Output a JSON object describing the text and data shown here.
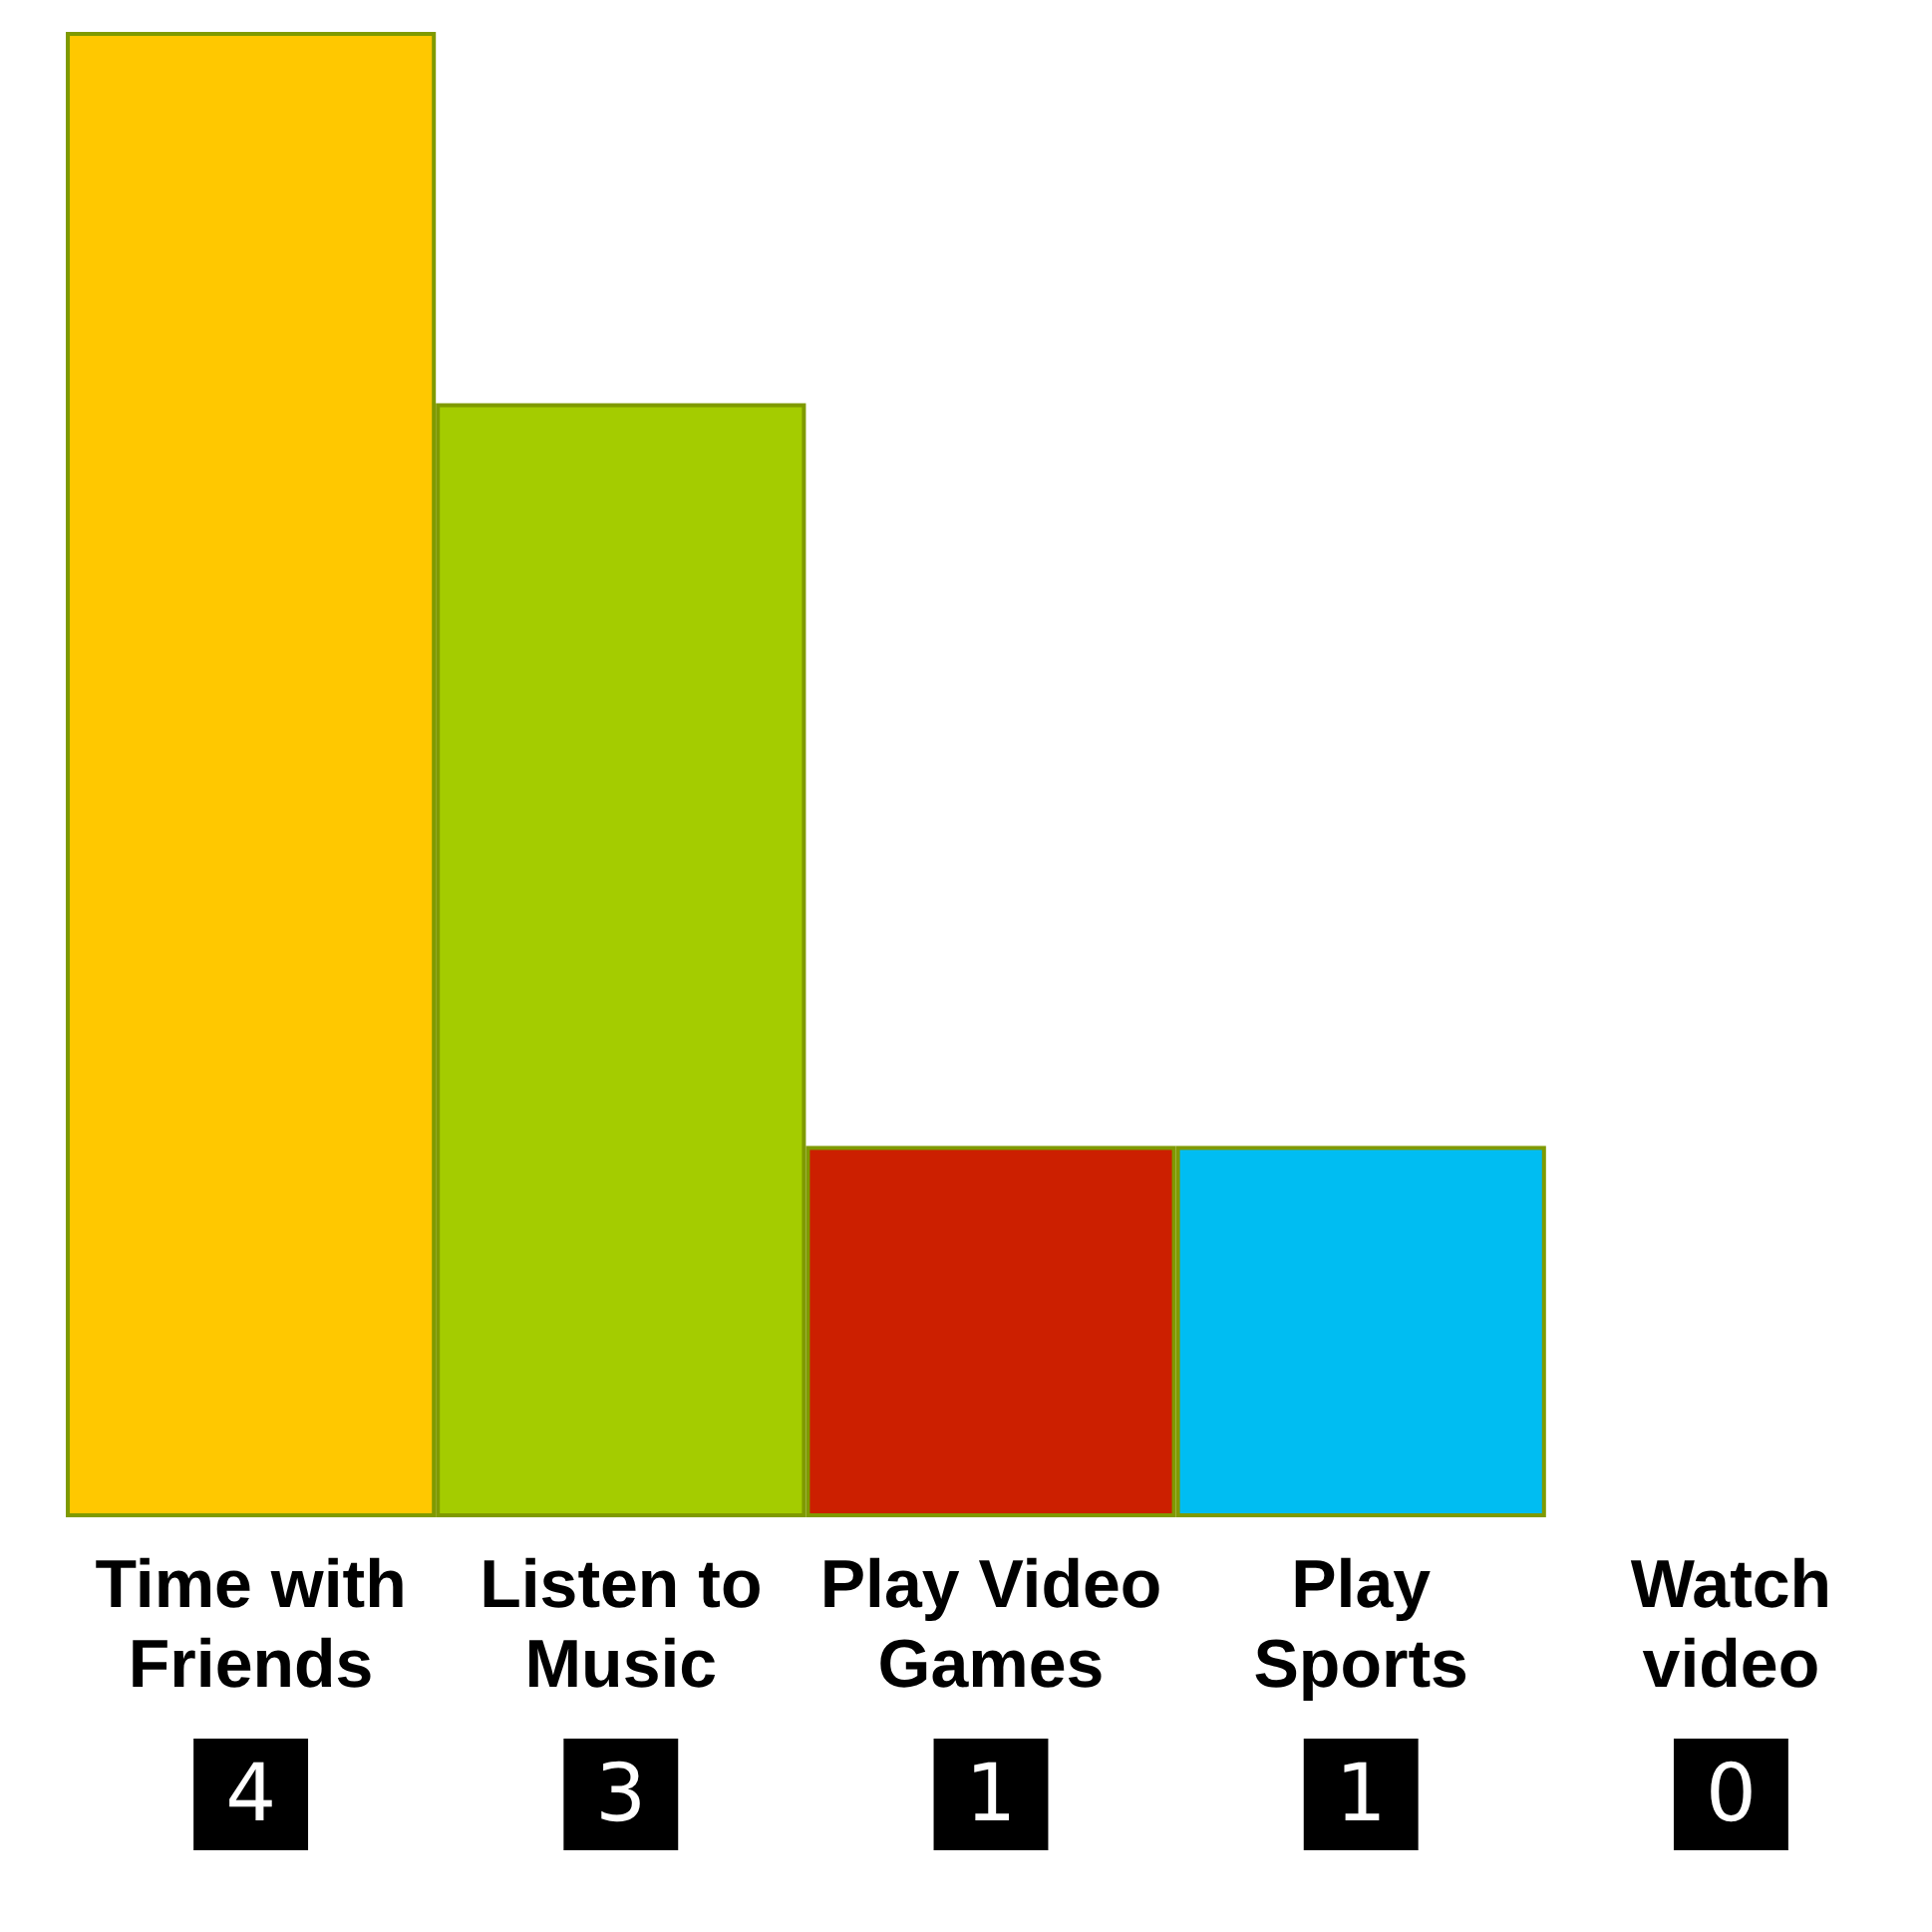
{
  "chart_data": {
    "type": "bar",
    "categories": [
      "Time with Friends",
      "Listen to Music",
      "Play Video Games",
      "Play Sports",
      "Watch video"
    ],
    "values": [
      4,
      3,
      1,
      1,
      0
    ],
    "colors": [
      "#ffc800",
      "#a4cc00",
      "#cc1f00",
      "#00bdf2",
      "#ffffff"
    ],
    "data_labels": true,
    "tick_labels": "x",
    "grid": false
  }
}
